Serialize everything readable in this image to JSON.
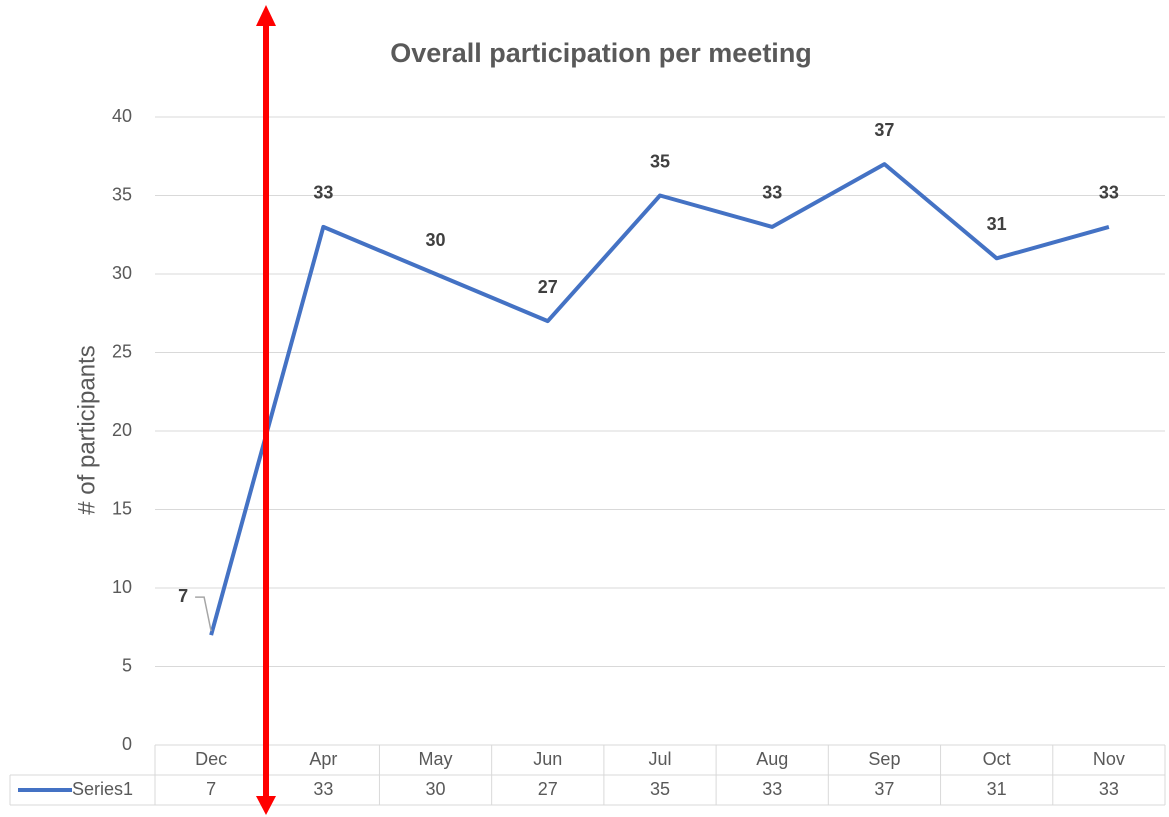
{
  "chart_data": {
    "type": "line",
    "title": "Overall participation per meeting",
    "y_label": "# of participants",
    "categories": [
      "Dec",
      "Apr",
      "May",
      "Jun",
      "Jul",
      "Aug",
      "Sep",
      "Oct",
      "Nov"
    ],
    "series": [
      {
        "name": "Series1",
        "color": "#4472c4",
        "values": [
          7,
          33,
          30,
          27,
          35,
          33,
          37,
          31,
          33
        ]
      }
    ],
    "ylim": [
      0,
      40
    ],
    "yticks": [
      0,
      5,
      10,
      15,
      20,
      25,
      30,
      35,
      40
    ],
    "grid": true,
    "data_table": true
  }
}
